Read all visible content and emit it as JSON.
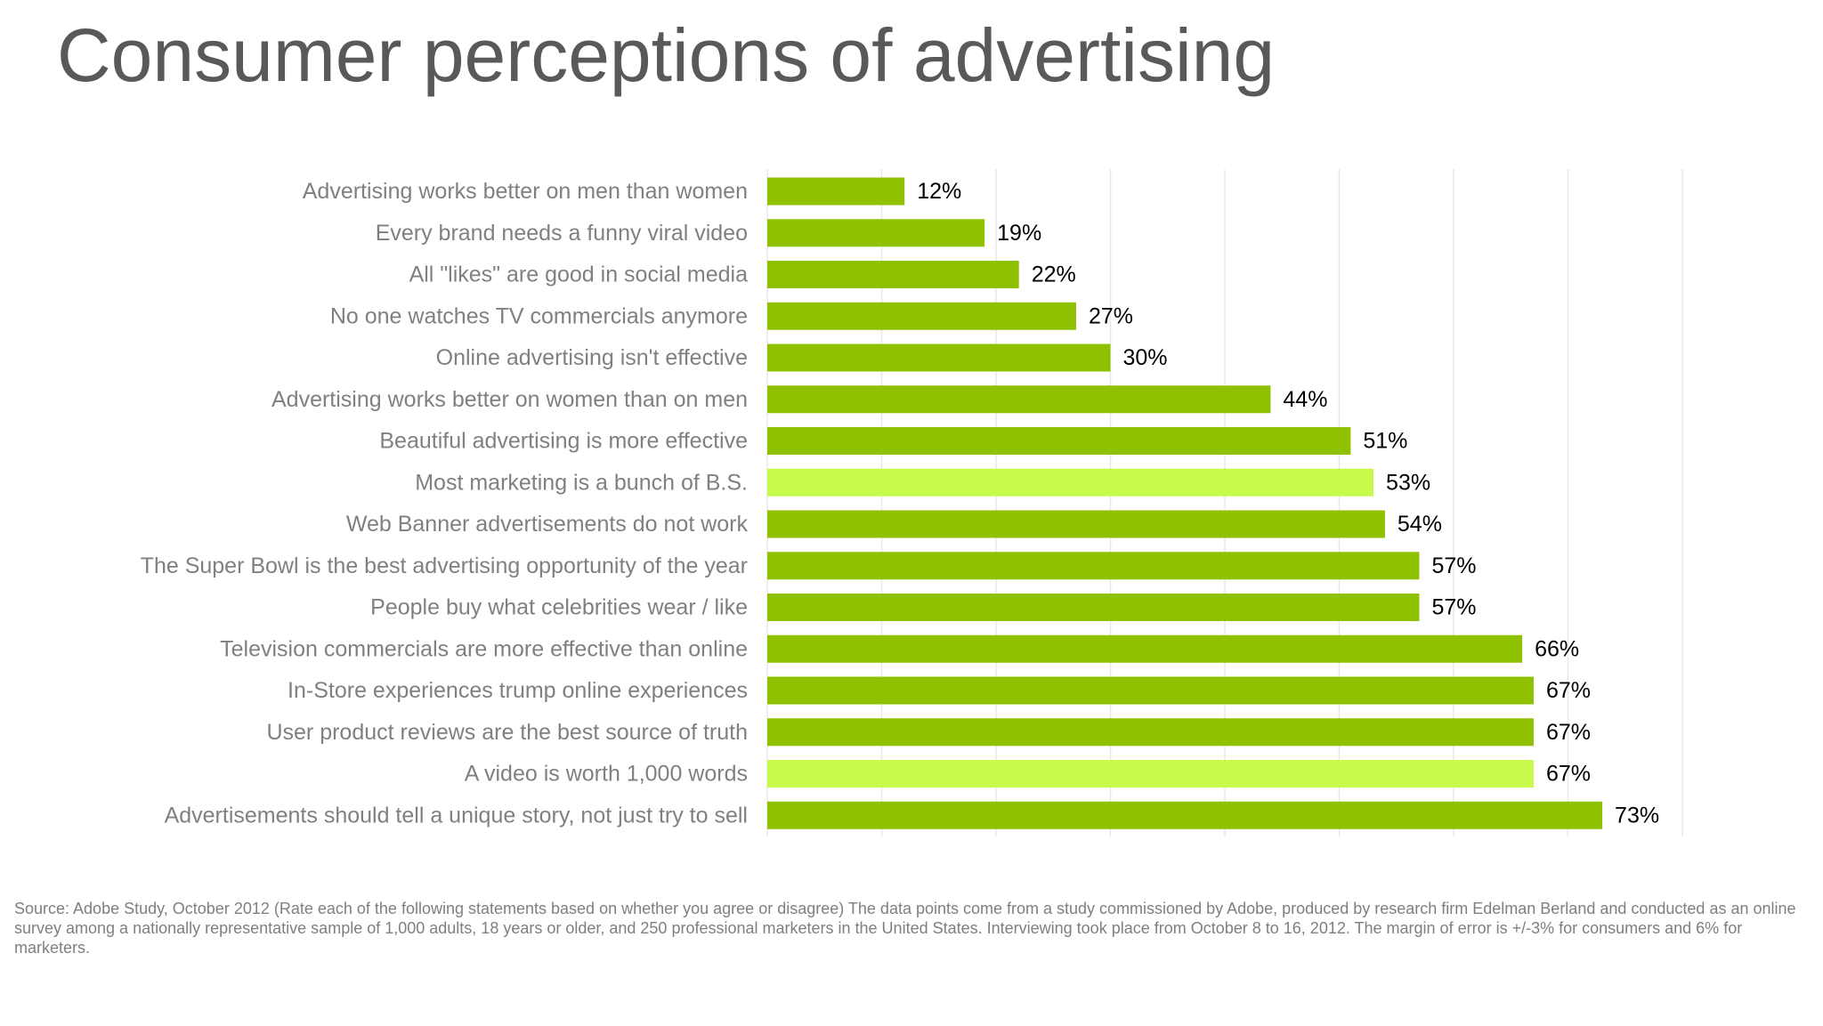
{
  "title": "Consumer perceptions of advertising",
  "source": "Source: Adobe Study, October 2012 (Rate each of the following statements based on whether you agree or disagree) The data points come from a study commissioned by Adobe, produced by research firm Edelman Berland and conducted as an online survey among a nationally representative sample of 1,000 adults, 18 years or older, and 250 professional marketers in the United States. Interviewing took place from October 8 to 16, 2012. The margin of error is +/-3% for consumers and 6% for marketers.",
  "colors": {
    "bar": "#8fc100",
    "bar_highlight": "#c8fa4b",
    "category_label": "#808080",
    "value_label": "#000000",
    "gridline": "#e8e8e8",
    "title": "#595959"
  },
  "chart_data": {
    "type": "bar",
    "orientation": "horizontal",
    "categories": [
      "Advertising works better on men than women",
      "Every brand needs a funny viral video",
      "All \"likes\" are good in social media",
      "No one watches TV commercials anymore",
      "Online advertising isn't effective",
      "Advertising works better on women than on men",
      "Beautiful advertising is more effective",
      "Most marketing is a bunch of B.S.",
      "Web Banner advertisements do not work",
      "The Super Bowl is the best advertising opportunity of the year",
      "People buy what celebrities wear / like",
      "Television commercials are more effective than online",
      "In-Store experiences trump online experiences",
      "User product reviews are the best source of truth",
      "A video is worth 1,000 words",
      "Advertisements should tell a unique story, not just try to sell"
    ],
    "values": [
      12,
      19,
      22,
      27,
      30,
      44,
      51,
      53,
      54,
      57,
      57,
      66,
      67,
      67,
      67,
      73
    ],
    "value_labels": [
      "12%",
      "19%",
      "22%",
      "27%",
      "30%",
      "44%",
      "51%",
      "53%",
      "54%",
      "57%",
      "57%",
      "66%",
      "67%",
      "67%",
      "67%",
      "73%"
    ],
    "highlighted": [
      false,
      false,
      false,
      false,
      false,
      false,
      false,
      true,
      false,
      false,
      false,
      false,
      false,
      false,
      true,
      false
    ],
    "xlim": [
      0,
      80
    ],
    "grid": true,
    "gridline_step": 10,
    "axis_tick_labels_shown": false,
    "legend": "none",
    "title": "Consumer perceptions of advertising"
  }
}
